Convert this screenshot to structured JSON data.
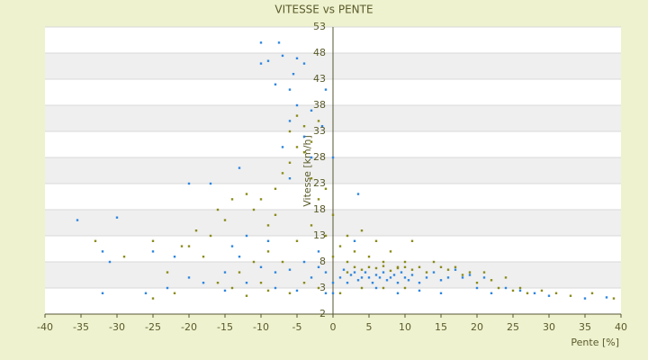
{
  "chart_data": {
    "type": "scatter",
    "title": "VITESSE vs PENTE",
    "x_label": "Pente [%]",
    "y_label": "Vitesse [km/h]",
    "xlim": [
      -40,
      40
    ],
    "ylim": [
      -2,
      53
    ],
    "xticks": [
      -40,
      -35,
      -30,
      -25,
      -20,
      -15,
      -10,
      -5,
      0,
      5,
      10,
      15,
      20,
      25,
      30,
      35,
      40
    ],
    "yticks": [
      -2,
      3,
      8,
      13,
      18,
      23,
      28,
      33,
      38,
      43,
      48,
      53
    ],
    "grid": true,
    "series": [
      {
        "color": "#8b8b1a",
        "x": [
          -33,
          -29,
          -25,
          -23,
          -21,
          -19,
          -17,
          -16,
          -15,
          -14,
          -12,
          -11,
          -10,
          -9,
          -8,
          -7,
          -6,
          -5,
          -4,
          -3,
          -2,
          -6,
          -5,
          -4,
          -3,
          -2,
          -1,
          -8,
          -9,
          -11,
          -13,
          -16,
          -18,
          -20,
          -14,
          -10,
          -7,
          -5,
          -3,
          -1,
          0,
          1,
          2,
          3,
          4,
          5,
          6,
          7,
          8,
          9,
          10,
          11,
          12,
          13,
          14,
          15,
          16,
          17,
          18,
          19,
          20,
          21,
          22,
          23,
          24,
          25,
          26,
          27,
          29,
          31,
          33,
          36,
          39,
          2,
          3,
          4,
          5,
          6,
          7,
          8,
          9,
          10,
          11,
          -2,
          -4,
          -6,
          -9,
          -12,
          1,
          4,
          7,
          10,
          0,
          2,
          -25,
          -22
        ],
        "values": [
          12,
          9,
          12,
          6,
          11,
          14,
          13,
          18,
          16,
          20,
          21,
          18,
          20,
          15,
          22,
          25,
          27,
          30,
          34,
          31,
          35,
          33,
          36,
          29,
          24,
          20,
          22,
          17,
          10,
          8,
          6,
          4,
          9,
          11,
          3,
          4,
          8,
          12,
          15,
          13,
          9,
          11,
          8,
          10,
          14,
          9,
          12,
          8,
          10,
          7,
          8,
          12,
          7,
          6,
          8,
          7,
          6.5,
          7,
          5.5,
          6,
          4,
          6,
          4.5,
          3,
          5,
          2.5,
          3,
          2,
          2.5,
          2,
          1.5,
          2,
          1,
          6,
          7,
          6.5,
          7,
          6.8,
          7.2,
          6.3,
          6.8,
          7,
          6.5,
          3,
          4,
          2,
          2.5,
          1.5,
          2,
          3,
          3,
          3,
          17,
          13,
          1,
          2
        ]
      },
      {
        "color": "#2e86de",
        "x": [
          -10,
          -7.5,
          -10,
          -9,
          -7,
          -5,
          -4,
          -5.5,
          -8,
          -6,
          -1,
          -5,
          -3,
          -6,
          -4,
          -1.5,
          -7,
          -3,
          0,
          -6,
          -20,
          -17,
          -13,
          -35.5,
          -30,
          -32,
          -31,
          -25,
          -22,
          -14,
          -12,
          3.5,
          -32,
          -26,
          -23,
          -18,
          -15,
          -12,
          -8,
          -5,
          -3,
          -2,
          -1,
          0,
          0,
          1,
          1.5,
          2,
          2.5,
          3,
          3.5,
          4,
          4.5,
          5,
          5.5,
          6,
          6.5,
          7,
          7.5,
          8,
          8.5,
          9,
          9.5,
          10,
          10.5,
          11,
          12,
          13,
          14,
          15,
          16,
          17,
          18,
          19,
          20,
          21,
          22,
          24,
          26,
          28,
          30,
          35,
          38,
          -10,
          -8,
          -6,
          -4,
          -15,
          -20,
          -13,
          -9,
          -2,
          3,
          6,
          9,
          12,
          15,
          -1
        ],
        "values": [
          50,
          50,
          46,
          46.5,
          47.5,
          47,
          46,
          44,
          42,
          41,
          41,
          38,
          37,
          35,
          32,
          34,
          30,
          28,
          28,
          24,
          23,
          23,
          26,
          16,
          16.5,
          10,
          8,
          10,
          9,
          11,
          13,
          21,
          2,
          2,
          3,
          4,
          2.5,
          4,
          3,
          2.5,
          5,
          7,
          6,
          4,
          2,
          5,
          6.5,
          4,
          5.5,
          6,
          4.5,
          5,
          6,
          5,
          4,
          5.5,
          5,
          6,
          4.5,
          5,
          5.5,
          4,
          6,
          5,
          4.5,
          5.5,
          4,
          5,
          6,
          4.5,
          5,
          6.5,
          5,
          5.5,
          3,
          5,
          2,
          3,
          2.5,
          2,
          1.5,
          1,
          1.2,
          7,
          6,
          6.5,
          8,
          6,
          5,
          9,
          12,
          10,
          12,
          3,
          2,
          2.5,
          2,
          2
        ]
      }
    ]
  }
}
